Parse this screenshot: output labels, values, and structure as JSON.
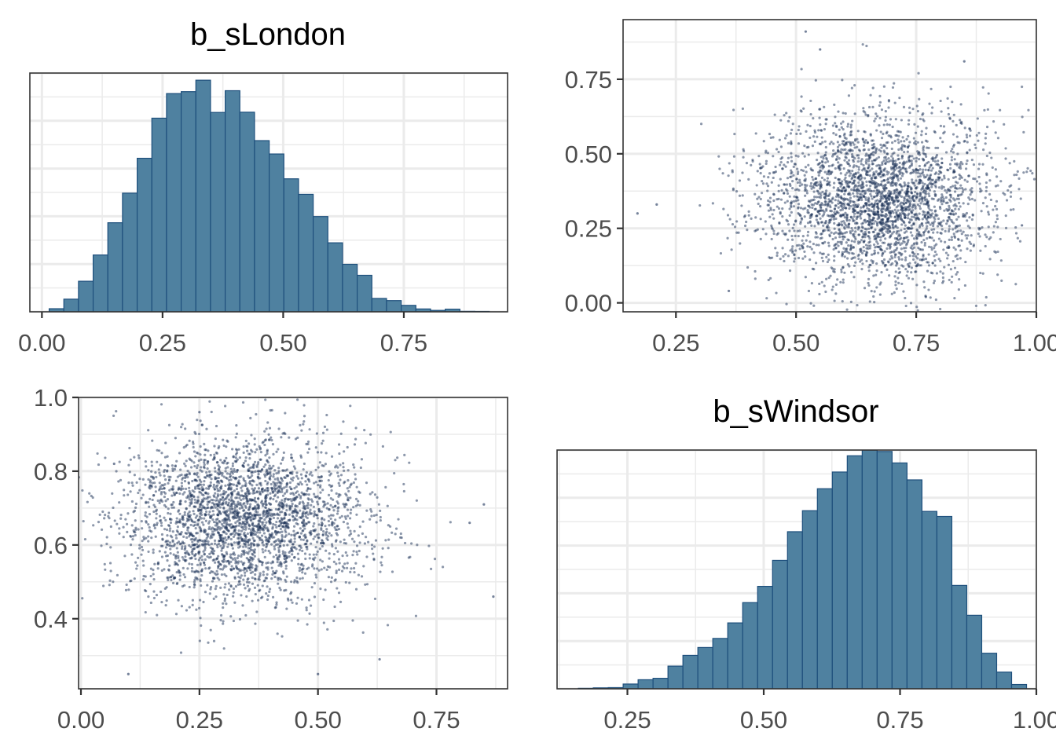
{
  "chart_data": [
    {
      "id": "p1",
      "type": "bar",
      "subtype": "histogram",
      "title": "b_sLondon",
      "xlim": [
        -0.025,
        0.965
      ],
      "ylim": [
        0,
        1.0
      ],
      "bin_start": 0.015,
      "bin_width": 0.0304,
      "values": [
        0.013,
        0.053,
        0.128,
        0.238,
        0.373,
        0.497,
        0.643,
        0.811,
        0.914,
        0.922,
        0.97,
        0.835,
        0.926,
        0.836,
        0.717,
        0.661,
        0.557,
        0.492,
        0.399,
        0.289,
        0.199,
        0.153,
        0.056,
        0.047,
        0.027,
        0.012,
        0.006,
        0.011,
        0.002,
        0.0016
      ],
      "x_ticks": [
        0.0,
        0.25,
        0.5,
        0.75
      ],
      "x_tick_labels": [
        "0.00",
        "0.25",
        "0.50",
        "0.75"
      ],
      "y_ticks": [],
      "fill": "#4f81a0",
      "stroke": "#1e4f7c"
    },
    {
      "id": "p2",
      "type": "scatter",
      "xlim": [
        0.14,
        1.0
      ],
      "ylim": [
        -0.03,
        0.95
      ],
      "cloud": {
        "count": 3000,
        "x_mean": 0.67,
        "x_sd": 0.12,
        "y_mean": 0.35,
        "y_sd": 0.14,
        "seed": 17
      },
      "outliers": [
        [
          0.17,
          0.3
        ],
        [
          0.21,
          0.33
        ],
        [
          0.52,
          0.91
        ],
        [
          0.55,
          0.85
        ],
        [
          0.85,
          0.81
        ],
        [
          0.36,
          0.04
        ],
        [
          0.77,
          0.02
        ],
        [
          0.97,
          0.26
        ]
      ],
      "x_ticks": [
        0.25,
        0.5,
        0.75,
        1.0
      ],
      "x_tick_labels": [
        "0.25",
        "0.50",
        "0.75",
        "1.00"
      ],
      "y_ticks": [
        0.0,
        0.25,
        0.5,
        0.75
      ],
      "y_tick_labels": [
        "0.00",
        "0.25",
        "0.50",
        "0.75"
      ],
      "point_color": "#1b3158"
    },
    {
      "id": "p3",
      "type": "scatter",
      "xlim": [
        -0.005,
        0.9
      ],
      "ylim": [
        0.21,
        1.0
      ],
      "cloud": {
        "count": 3000,
        "x_mean": 0.34,
        "x_sd": 0.13,
        "y_mean": 0.67,
        "y_sd": 0.11,
        "seed": 29
      },
      "outliers": [
        [
          0.07,
          0.82
        ],
        [
          0.1,
          0.25
        ],
        [
          0.87,
          0.46
        ],
        [
          0.82,
          0.66
        ],
        [
          0.85,
          0.71
        ],
        [
          0.63,
          0.29
        ],
        [
          0.25,
          0.96
        ],
        [
          0.5,
          0.25
        ]
      ],
      "x_ticks": [
        0.0,
        0.25,
        0.5,
        0.75
      ],
      "x_tick_labels": [
        "0.00",
        "0.25",
        "0.50",
        "0.75"
      ],
      "y_ticks": [
        0.4,
        0.6,
        0.8,
        1.0
      ],
      "y_tick_labels": [
        "0.4",
        "0.6",
        "0.8",
        "1.0"
      ],
      "point_color": "#1b3158"
    },
    {
      "id": "p4",
      "type": "bar",
      "subtype": "histogram",
      "title": "b_sWindsor",
      "xlim": [
        0.121,
        1.0
      ],
      "ylim": [
        0,
        1.0
      ],
      "bin_start": 0.16,
      "bin_width": 0.0274,
      "values": [
        0.002,
        0.004,
        0.005,
        0.02,
        0.038,
        0.044,
        0.095,
        0.14,
        0.173,
        0.211,
        0.276,
        0.361,
        0.429,
        0.538,
        0.658,
        0.746,
        0.838,
        0.908,
        0.976,
        1.0,
        0.994,
        0.946,
        0.875,
        0.743,
        0.722,
        0.433,
        0.308,
        0.149,
        0.07,
        0.018
      ],
      "x_ticks": [
        0.25,
        0.5,
        0.75,
        1.0
      ],
      "x_tick_labels": [
        "0.25",
        "0.50",
        "0.75",
        "1.00"
      ],
      "y_ticks": [],
      "fill": "#4f81a0",
      "stroke": "#1e4f7c"
    }
  ]
}
